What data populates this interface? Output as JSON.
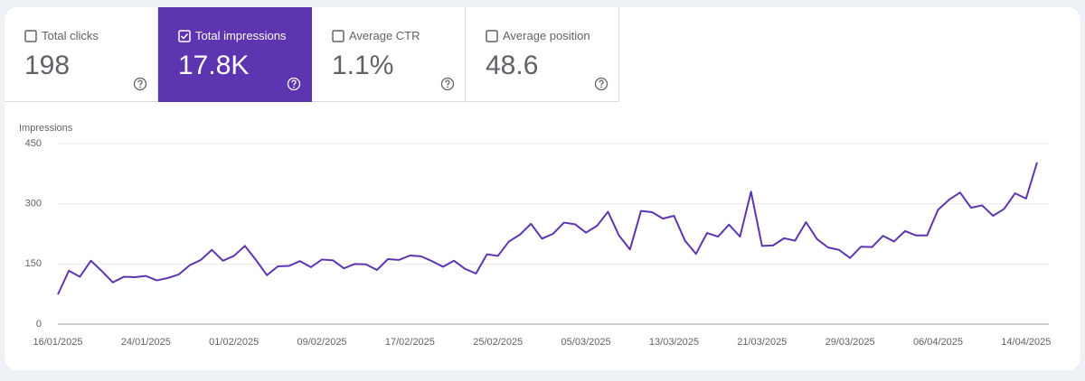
{
  "metrics": [
    {
      "label": "Total clicks",
      "value": "198",
      "selected": false
    },
    {
      "label": "Total impressions",
      "value": "17.8K",
      "selected": true
    },
    {
      "label": "Average CTR",
      "value": "1.1%",
      "selected": false
    },
    {
      "label": "Average position",
      "value": "48.6",
      "selected": false
    }
  ],
  "chart_data": {
    "type": "line",
    "y_label": "Impressions",
    "color": "#5e35b1",
    "grid": true,
    "x": [
      "16/01/2025",
      "17/01/2025",
      "18/01/2025",
      "19/01/2025",
      "20/01/2025",
      "21/01/2025",
      "22/01/2025",
      "23/01/2025",
      "24/01/2025",
      "25/01/2025",
      "26/01/2025",
      "27/01/2025",
      "28/01/2025",
      "29/01/2025",
      "30/01/2025",
      "31/01/2025",
      "01/02/2025",
      "02/02/2025",
      "03/02/2025",
      "04/02/2025",
      "05/02/2025",
      "06/02/2025",
      "07/02/2025",
      "08/02/2025",
      "09/02/2025",
      "10/02/2025",
      "11/02/2025",
      "12/02/2025",
      "13/02/2025",
      "14/02/2025",
      "15/02/2025",
      "16/02/2025",
      "17/02/2025",
      "18/02/2025",
      "19/02/2025",
      "20/02/2025",
      "21/02/2025",
      "22/02/2025",
      "23/02/2025",
      "24/02/2025",
      "25/02/2025",
      "26/02/2025",
      "27/02/2025",
      "28/02/2025",
      "01/03/2025",
      "02/03/2025",
      "03/03/2025",
      "04/03/2025",
      "05/03/2025",
      "06/03/2025",
      "07/03/2025",
      "08/03/2025",
      "09/03/2025",
      "10/03/2025",
      "11/03/2025",
      "12/03/2025",
      "13/03/2025",
      "14/03/2025",
      "15/03/2025",
      "16/03/2025",
      "17/03/2025",
      "18/03/2025",
      "19/03/2025",
      "20/03/2025",
      "21/03/2025",
      "22/03/2025",
      "23/03/2025",
      "24/03/2025",
      "25/03/2025",
      "26/03/2025",
      "27/03/2025",
      "28/03/2025",
      "29/03/2025",
      "30/03/2025",
      "31/03/2025",
      "01/04/2025",
      "02/04/2025",
      "03/04/2025",
      "04/04/2025",
      "05/04/2025",
      "06/04/2025",
      "07/04/2025",
      "08/04/2025",
      "09/04/2025",
      "10/04/2025",
      "11/04/2025",
      "12/04/2025",
      "13/04/2025",
      "14/04/2025",
      "15/04/2025"
    ],
    "values": [
      74,
      133,
      118,
      158,
      132,
      104,
      118,
      117,
      120,
      109,
      115,
      124,
      147,
      160,
      185,
      158,
      170,
      195,
      160,
      122,
      144,
      145,
      157,
      142,
      161,
      159,
      139,
      150,
      149,
      135,
      162,
      160,
      171,
      169,
      157,
      143,
      158,
      138,
      126,
      174,
      170,
      206,
      223,
      250,
      213,
      225,
      253,
      249,
      228,
      245,
      280,
      221,
      186,
      282,
      279,
      263,
      270,
      208,
      175,
      227,
      218,
      248,
      218,
      330,
      195,
      196,
      214,
      208,
      254,
      212,
      191,
      185,
      165,
      193,
      192,
      220,
      206,
      232,
      221,
      221,
      285,
      310,
      328,
      290,
      296,
      270,
      287,
      326,
      313,
      403
    ],
    "xticks": [
      "16/01/2025",
      "24/01/2025",
      "01/02/2025",
      "09/02/2025",
      "17/02/2025",
      "25/02/2025",
      "05/03/2025",
      "13/03/2025",
      "21/03/2025",
      "29/03/2025",
      "06/04/2025",
      "14/04/2025"
    ],
    "ylim": [
      0,
      450
    ],
    "yticks": [
      0,
      150,
      300,
      450
    ]
  }
}
